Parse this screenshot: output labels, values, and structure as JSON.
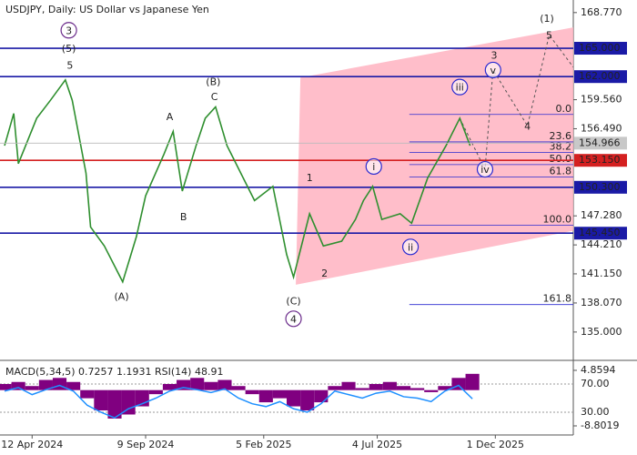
{
  "chart_data": [
    {
      "type": "line",
      "title": "USDJPY, Daily:  US Dollar vs Japanese Yen",
      "x": [
        4,
        12,
        16,
        32,
        44,
        57,
        63,
        75,
        79,
        91,
        107,
        119,
        127,
        143,
        151,
        159,
        171,
        179,
        188,
        198,
        210,
        222,
        238,
        250,
        256,
        270,
        282,
        298,
        310,
        317,
        325,
        333,
        349,
        359,
        373,
        389,
        401,
        410
      ],
      "series": [
        {
          "color": "#2f8f2f",
          "values": [
            154.7,
            158.1,
            152.8,
            157.6,
            159.5,
            161.65,
            159.5,
            151.8,
            146.1,
            144.1,
            140.3,
            145.1,
            149.4,
            153.8,
            156.2,
            149.9,
            154.7,
            157.6,
            158.8,
            154.7,
            151.8,
            148.9,
            150.4,
            143.2,
            140.8,
            147.5,
            144.1,
            144.6,
            146.9,
            148.9,
            150.4,
            146.9,
            147.5,
            146.5,
            151.3,
            154.7,
            157.6,
            154.7
          ]
        }
      ],
      "xlim": [
        0,
        500
      ],
      "xticks": [
        {
          "value": 28,
          "label": "12 Apr 2024"
        },
        {
          "value": 127,
          "label": "9 Sep 2024"
        },
        {
          "value": 230,
          "label": "5 Feb 2025"
        },
        {
          "value": 329,
          "label": "4 Jul 2025"
        },
        {
          "value": 432,
          "label": "1 Dec 2025"
        }
      ],
      "ylim": [
        132.1,
        170.1
      ],
      "yticks": [
        {
          "value": 135,
          "label": "135.000"
        },
        {
          "value": 138.07,
          "label": "138.070"
        },
        {
          "value": 141.15,
          "label": "141.150"
        },
        {
          "value": 144.21,
          "label": "144.210"
        },
        {
          "value": 147.28,
          "label": "147.280"
        },
        {
          "value": 156.49,
          "label": "156.490"
        },
        {
          "value": 159.56,
          "label": "159.560"
        },
        {
          "value": 168.77,
          "label": "168.770"
        }
      ],
      "levels": [
        {
          "value": 165,
          "label": "165.000",
          "color": "#1a1aa6"
        },
        {
          "value": 162,
          "label": "162.000",
          "color": "#1a1aa6"
        },
        {
          "value": 153.15,
          "label": "153.150",
          "color": "#d42020"
        },
        {
          "value": 150.3,
          "label": "150.300",
          "color": "#1a1aa6"
        },
        {
          "value": 145.45,
          "label": "145.450",
          "color": "#1a1aa6"
        }
      ],
      "last_price": 154.966,
      "fib": {
        "x": [
          357,
          500
        ],
        "levels": [
          {
            "price": 158.0,
            "label": "0.0"
          },
          {
            "price": 155.1,
            "label": "23.6"
          },
          {
            "price": 154.0,
            "label": "38.2"
          },
          {
            "price": 152.7,
            "label": "50.0"
          },
          {
            "price": 151.4,
            "label": "61.8"
          },
          {
            "price": 146.3,
            "label": "100.0"
          },
          {
            "price": 137.9,
            "label": "161.8"
          }
        ]
      },
      "channel": {
        "upper": {
          "x": [
            262,
            500
          ],
          "y": [
            161.9,
            167.2
          ]
        },
        "lower": {
          "x": [
            258,
            500
          ],
          "y": [
            140.0,
            145.7
          ]
        }
      },
      "projection": {
        "x": [
          401,
          423,
          430,
          460,
          479,
          500
        ],
        "values": [
          157.6,
          152.2,
          162.7,
          156.8,
          166.4,
          163.0
        ]
      },
      "annotations": [
        {
          "text": "3",
          "x": 60,
          "y": 166.9,
          "color": "#6a2a8a",
          "circled": true
        },
        {
          "text": "(5)",
          "x": 60,
          "y": 165.0,
          "color": "#3a8a2a",
          "circled": false
        },
        {
          "text": "5",
          "x": 61,
          "y": 163.2,
          "color": "#a0463c",
          "circled": false
        },
        {
          "text": "A",
          "x": 148,
          "y": 157.8,
          "color": "#a0463c",
          "circled": false
        },
        {
          "text": "B",
          "x": 160,
          "y": 147.2,
          "color": "#a0463c",
          "circled": false
        },
        {
          "text": "(B)",
          "x": 186,
          "y": 161.5,
          "color": "#3a8a2a",
          "circled": false
        },
        {
          "text": "C",
          "x": 187,
          "y": 159.9,
          "color": "#a0463c",
          "circled": false
        },
        {
          "text": "(A)",
          "x": 106,
          "y": 138.8,
          "color": "#3a8a2a",
          "circled": false
        },
        {
          "text": "(C)",
          "x": 256,
          "y": 138.3,
          "color": "#3a8a2a",
          "circled": false
        },
        {
          "text": "4",
          "x": 256,
          "y": 136.4,
          "color": "#6a2a8a",
          "circled": true
        },
        {
          "text": "1",
          "x": 270,
          "y": 151.35,
          "color": "#a0463c",
          "circled": false
        },
        {
          "text": "2",
          "x": 283,
          "y": 141.25,
          "color": "#a0463c",
          "circled": false
        },
        {
          "text": "i",
          "x": 326,
          "y": 152.5,
          "color": "#2a2ad0",
          "circled": true
        },
        {
          "text": "ii",
          "x": 358,
          "y": 144.0,
          "color": "#2a2ad0",
          "circled": true
        },
        {
          "text": "iii",
          "x": 401,
          "y": 160.9,
          "color": "#2a2ad0",
          "circled": true
        },
        {
          "text": "iv",
          "x": 423,
          "y": 152.2,
          "color": "#2a2ad0",
          "circled": true
        },
        {
          "text": "v",
          "x": 430,
          "y": 162.7,
          "color": "#2a2ad0",
          "circled": true
        },
        {
          "text": "3",
          "x": 431,
          "y": 164.3,
          "color": "#a0463c",
          "circled": false
        },
        {
          "text": "4",
          "x": 460,
          "y": 156.8,
          "color": "#a0463c",
          "circled": false
        },
        {
          "text": "5",
          "x": 479,
          "y": 166.4,
          "color": "#a0463c",
          "circled": false
        },
        {
          "text": "(1)",
          "x": 477,
          "y": 168.2,
          "color": "#3a8a2a",
          "circled": false
        }
      ]
    },
    {
      "type": "macd",
      "title": "MACD(5,34,5) 0.7257 1.1931 RSI(14) 48.91",
      "x": [
        4,
        16,
        28,
        40,
        52,
        64,
        76,
        88,
        100,
        112,
        124,
        136,
        148,
        160,
        172,
        184,
        196,
        208,
        220,
        232,
        244,
        256,
        268,
        280,
        292,
        304,
        316,
        328,
        340,
        352,
        364,
        376,
        388,
        400,
        412
      ],
      "series": [
        {
          "color": "#800080",
          "values": [
            1.5,
            2.0,
            1.0,
            2.5,
            3.0,
            2.0,
            -2,
            -5,
            -7,
            -6,
            -4,
            -1,
            1.5,
            2.5,
            3,
            2,
            2.5,
            1,
            -1,
            -3,
            -2,
            -4,
            -5,
            -3,
            1,
            2,
            0.5,
            1.5,
            2,
            1,
            0.5,
            -0.5,
            1,
            3,
            4
          ]
        },
        {
          "color": "#1e90ff",
          "axis": "y2",
          "values": [
            60,
            65,
            55,
            62,
            68,
            60,
            40,
            30,
            22,
            35,
            42,
            50,
            60,
            65,
            62,
            58,
            63,
            50,
            42,
            38,
            45,
            35,
            30,
            42,
            60,
            55,
            50,
            57,
            60,
            52,
            50,
            45,
            60,
            68,
            49
          ]
        }
      ],
      "ylim": [
        -11.04,
        6.87
      ],
      "yticks": [
        4.8594,
        -8.8019
      ],
      "y2lim": [
        -2.3,
        101
      ],
      "y2ticks": [
        {
          "value": 70,
          "label": "70.00"
        },
        {
          "value": 30,
          "label": "30.00"
        }
      ]
    }
  ]
}
